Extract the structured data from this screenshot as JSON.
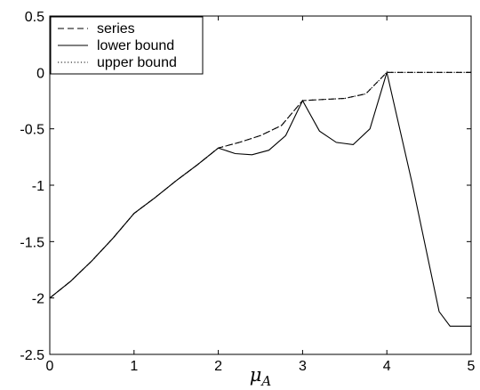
{
  "chart_data": {
    "type": "line",
    "xlabel": {
      "base": "μ",
      "sub": "A"
    },
    "xlim": [
      0,
      5
    ],
    "ylim": [
      -2.5,
      0.5
    ],
    "xticks": [
      0,
      1,
      2,
      3,
      4,
      5
    ],
    "xtick_labels": [
      "0",
      "1",
      "2",
      "3",
      "4",
      "5"
    ],
    "yticks": [
      0.5,
      0,
      -0.5,
      -1,
      -1.5,
      -2,
      -2.5
    ],
    "ytick_labels": [
      "0.5",
      "0",
      "-0.5",
      "-1",
      "-1.5",
      "-2",
      "-2.5"
    ],
    "grid": false,
    "legend_position": "top-left",
    "series": [
      {
        "name": "series",
        "style": "dashed",
        "x": [
          0,
          0.25,
          0.5,
          0.75,
          1,
          1.25,
          1.5,
          1.75,
          2,
          2.25,
          2.5,
          2.75,
          3,
          3.25,
          3.5,
          3.75,
          4,
          4.25,
          4.5,
          4.75,
          5
        ],
        "y": [
          -2,
          -1.85,
          -1.67,
          -1.47,
          -1.25,
          -1.11,
          -0.96,
          -0.82,
          -0.67,
          -0.62,
          -0.56,
          -0.47,
          -0.25,
          -0.24,
          -0.23,
          -0.19,
          0,
          0,
          0,
          0,
          0
        ]
      },
      {
        "name": "lower bound",
        "style": "solid",
        "x": [
          0,
          0.25,
          0.5,
          0.75,
          1,
          1.25,
          1.5,
          1.75,
          2,
          2.2,
          2.4,
          2.6,
          2.8,
          3,
          3.2,
          3.4,
          3.6,
          3.8,
          4,
          4.3,
          4.62,
          4.75,
          5
        ],
        "y": [
          -2,
          -1.85,
          -1.67,
          -1.47,
          -1.25,
          -1.11,
          -0.96,
          -0.82,
          -0.67,
          -0.72,
          -0.73,
          -0.69,
          -0.56,
          -0.25,
          -0.52,
          -0.62,
          -0.64,
          -0.5,
          0,
          -0.98,
          -2.12,
          -2.25,
          -2.25
        ]
      },
      {
        "name": "upper bound",
        "style": "dotted",
        "x": [
          0,
          0.25,
          0.5,
          0.75,
          1,
          1.25,
          1.5,
          1.75,
          2,
          2.25,
          2.5,
          2.75,
          3,
          3.25,
          3.5,
          3.75,
          4,
          4.25,
          4.5,
          4.75,
          5
        ],
        "y": [
          -2,
          -1.85,
          -1.67,
          -1.47,
          -1.25,
          -1.11,
          -0.96,
          -0.82,
          -0.67,
          -0.62,
          -0.56,
          -0.47,
          -0.25,
          -0.24,
          -0.23,
          -0.19,
          0,
          0,
          0,
          0,
          0
        ]
      }
    ]
  },
  "colors": {
    "line": "#000000",
    "background": "#ffffff"
  }
}
